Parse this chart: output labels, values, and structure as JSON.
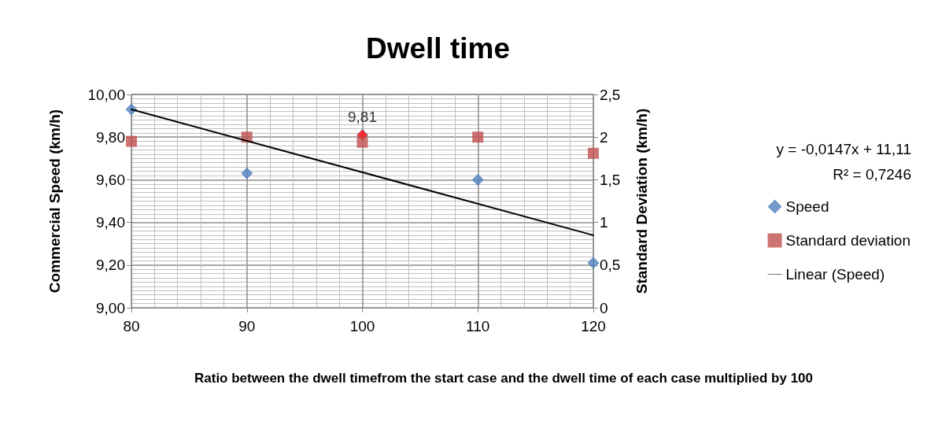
{
  "chart_data": {
    "type": "scatter",
    "title": "Dwell time",
    "xlabel": "Ratio between the dwell timefrom the start case and the dwell time of each case multiplied by 100",
    "ylabel": "Commercial Speed (km/h)",
    "y2label": "Standard Deviation (km/h)",
    "x": [
      80,
      90,
      100,
      110,
      120
    ],
    "series": [
      {
        "name": "Speed",
        "marker": "diamond",
        "color": "#4f81bd",
        "colors": [
          "#4f81bd",
          "#4f81bd",
          "#ff0000",
          "#4f81bd",
          "#4f81bd"
        ],
        "values": [
          9.93,
          9.63,
          9.81,
          9.6,
          9.21
        ],
        "value_labels": [
          null,
          null,
          "9,81",
          null,
          null
        ]
      },
      {
        "name": "Standard deviation",
        "marker": "square",
        "axis": "y2",
        "color": "#c0504d",
        "values": [
          1.95,
          2.0,
          1.94,
          2.0,
          1.81
        ]
      },
      {
        "name": "Linear (Speed)",
        "type": "line",
        "marker": "none",
        "line_style": "solid",
        "color": "#000000",
        "x": [
          80,
          120
        ],
        "values": [
          9.93,
          9.34
        ]
      }
    ],
    "annotations": [
      "y = -0,0147x + 11,11",
      "R² = 0,7246"
    ],
    "xlim": [
      80,
      120
    ],
    "xticks": [
      80,
      90,
      100,
      110,
      120
    ],
    "ylim": [
      9,
      10
    ],
    "yticks": [
      {
        "value": 9,
        "label": "9,00"
      },
      {
        "value": 9.2,
        "label": "9,20"
      },
      {
        "value": 9.4,
        "label": "9,40"
      },
      {
        "value": 9.6,
        "label": "9,60"
      },
      {
        "value": 9.8,
        "label": "9,80"
      },
      {
        "value": 10,
        "label": "10,00"
      }
    ],
    "y2lim": [
      0,
      2.5
    ],
    "y2ticks": [
      0,
      {
        "value": 0.5,
        "label": "0,5"
      },
      1,
      {
        "value": 1.5,
        "label": "1,5"
      },
      2,
      {
        "value": 2.5,
        "label": "2,5"
      }
    ],
    "grid": true,
    "legend": "right"
  }
}
